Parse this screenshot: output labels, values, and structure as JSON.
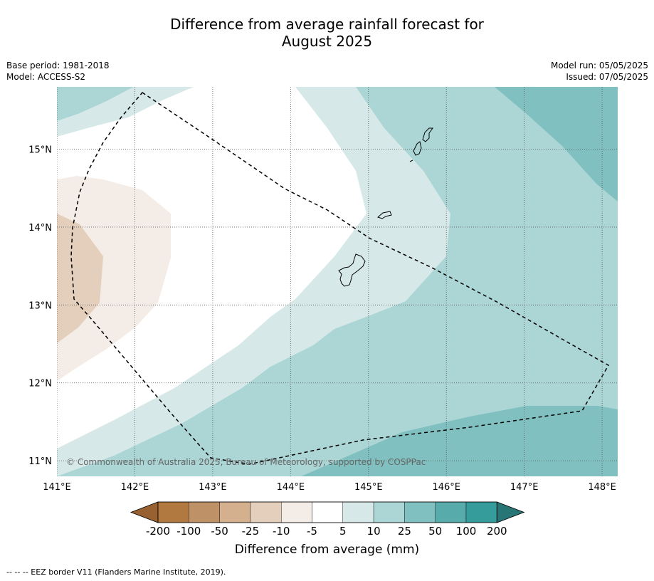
{
  "title": {
    "line1": "Difference from average rainfall forecast for",
    "line2": "August 2025"
  },
  "meta_left": {
    "base_period": "Base period: 1981-2018",
    "model": "Model: ACCESS-S2"
  },
  "meta_right": {
    "model_run": "Model run: 05/05/2025",
    "issued": "Issued: 07/05/2025"
  },
  "map": {
    "lon_ticks": [
      "141°E",
      "142°E",
      "143°E",
      "144°E",
      "145°E",
      "146°E",
      "147°E",
      "148°E"
    ],
    "lat_ticks": [
      "15°N",
      "14°N",
      "13°N",
      "12°N",
      "11°N"
    ],
    "lon_values": [
      141,
      142,
      143,
      144,
      145,
      146,
      147,
      148
    ],
    "lat_values": [
      15,
      14,
      13,
      12,
      11
    ],
    "lon_range": [
      141,
      148.2
    ],
    "lat_range": [
      10.8,
      15.8
    ],
    "copyright": "© Commonwealth of Australia 2025, Bureau of Meteorology, supported by COSPPac",
    "gridlines": "dotted"
  },
  "colorbar": {
    "tick_labels": [
      "-200",
      "-100",
      "-50",
      "-25",
      "-10",
      "-5",
      "5",
      "10",
      "25",
      "50",
      "100",
      "200"
    ],
    "colors": [
      "#986131",
      "#b1783f",
      "#bf9167",
      "#d4b08f",
      "#e4cfbc",
      "#f4ece6",
      "#ffffff",
      "#d6e9e8",
      "#acd5d5",
      "#81c0c0",
      "#57abab",
      "#369b9b",
      "#287575"
    ],
    "label": "Difference from average (mm)"
  },
  "footnote": "--  --  -- EEZ border V11 (Flanders Marine Institute, 2019)."
}
